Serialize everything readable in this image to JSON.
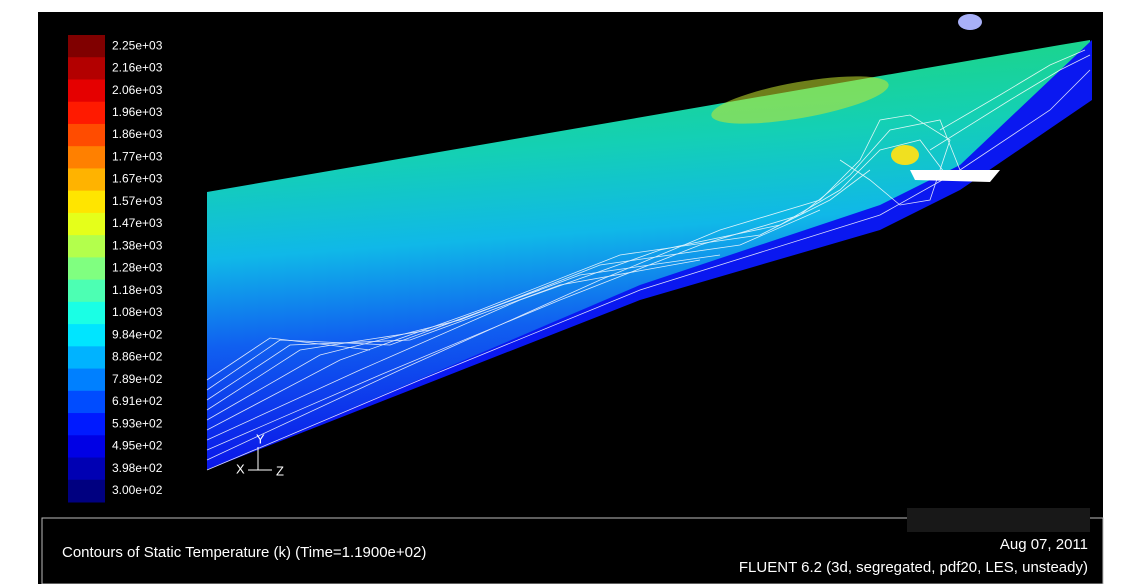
{
  "colorbar": {
    "labels": [
      "2.25e+03",
      "2.16e+03",
      "2.06e+03",
      "1.96e+03",
      "1.86e+03",
      "1.77e+03",
      "1.67e+03",
      "1.57e+03",
      "1.47e+03",
      "1.38e+03",
      "1.28e+03",
      "1.18e+03",
      "1.08e+03",
      "9.84e+02",
      "8.86e+02",
      "7.89e+02",
      "6.91e+02",
      "5.93e+02",
      "4.95e+02",
      "3.98e+02",
      "3.00e+02"
    ]
  },
  "axes": {
    "y": "Y",
    "x": "X",
    "z": "Z"
  },
  "footer": {
    "caption": "Contours of Static Temperature (k)  (Time=1.1900e+02)",
    "date": "Aug 07, 2011",
    "solver": "FLUENT 6.2 (3d, segregated, pdf20, LES, unsteady)"
  }
}
